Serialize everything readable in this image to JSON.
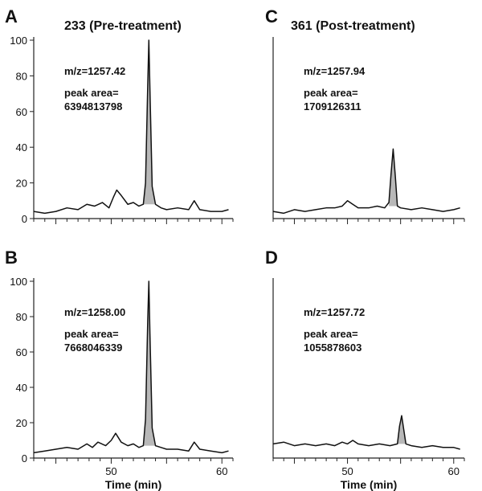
{
  "figure": {
    "group_titles": [
      "233 (Pre-treatment)",
      "361 (Post-treatment)"
    ],
    "x_axis_label": "Time (min)"
  },
  "colors": {
    "trace": "#111111",
    "peak_fill": "#b8b8b8",
    "axis": "#222222"
  },
  "chart_data": [
    {
      "type": "line",
      "panel_letter": "A",
      "title": "233 (Pre-treatment)",
      "annotation": {
        "mz_text": "m/z=1257.42",
        "peak_area_label": "peak area=",
        "peak_area_value": "6394813798"
      },
      "xlim": [
        43,
        61
      ],
      "ylim": [
        0,
        100
      ],
      "x_ticks": [],
      "y_ticks": [
        0,
        20,
        40,
        60,
        80,
        100
      ],
      "xlabel": "",
      "peak": {
        "center": 53.4,
        "fill_range": [
          52.9,
          54.0
        ]
      },
      "x": [
        43.0,
        44.0,
        45.0,
        46.0,
        47.0,
        47.8,
        48.5,
        49.2,
        49.8,
        50.2,
        50.5,
        50.9,
        51.5,
        52.0,
        52.5,
        52.9,
        53.1,
        53.3,
        53.4,
        53.5,
        53.7,
        54.0,
        54.5,
        55.0,
        56.0,
        57.0,
        57.5,
        58.0,
        59.0,
        60.0,
        60.6
      ],
      "y": [
        4,
        3,
        4,
        6,
        5,
        8,
        7,
        9,
        6,
        12,
        16,
        13,
        8,
        9,
        7,
        8,
        20,
        75,
        100,
        72,
        18,
        8,
        6,
        5,
        6,
        5,
        10,
        5,
        4,
        4,
        5
      ]
    },
    {
      "type": "line",
      "panel_letter": "B",
      "title": "",
      "annotation": {
        "mz_text": "m/z=1258.00",
        "peak_area_label": "peak area=",
        "peak_area_value": "7668046339"
      },
      "xlim": [
        43,
        61
      ],
      "ylim": [
        0,
        100
      ],
      "x_ticks": [
        50,
        60
      ],
      "y_ticks": [
        0,
        20,
        40,
        60,
        80,
        100
      ],
      "xlabel": "Time (min)",
      "peak": {
        "center": 53.4,
        "fill_range": [
          52.9,
          54.0
        ]
      },
      "x": [
        43.0,
        44.0,
        45.0,
        46.0,
        47.0,
        47.8,
        48.3,
        48.8,
        49.5,
        50.0,
        50.4,
        50.9,
        51.5,
        52.0,
        52.5,
        52.9,
        53.1,
        53.3,
        53.4,
        53.5,
        53.7,
        54.0,
        54.5,
        55.0,
        56.0,
        57.0,
        57.5,
        58.0,
        59.0,
        60.0,
        60.6
      ],
      "y": [
        3,
        4,
        5,
        6,
        5,
        8,
        6,
        9,
        7,
        10,
        14,
        9,
        7,
        8,
        6,
        7,
        22,
        78,
        100,
        70,
        17,
        7,
        6,
        5,
        5,
        4,
        9,
        5,
        4,
        3,
        4
      ]
    },
    {
      "type": "line",
      "panel_letter": "C",
      "title": "361 (Post-treatment)",
      "annotation": {
        "mz_text": "m/z=1257.94",
        "peak_area_label": "peak area=",
        "peak_area_value": "1709126311"
      },
      "xlim": [
        43,
        61
      ],
      "ylim": [
        0,
        100
      ],
      "x_ticks": [],
      "y_ticks": [],
      "xlabel": "",
      "peak": {
        "center": 54.3,
        "fill_range": [
          53.9,
          54.7
        ]
      },
      "x": [
        43.0,
        44.0,
        45.0,
        46.0,
        47.0,
        48.0,
        48.8,
        49.5,
        50.0,
        50.5,
        51.0,
        52.0,
        52.8,
        53.5,
        53.9,
        54.1,
        54.3,
        54.5,
        54.7,
        55.0,
        56.0,
        57.0,
        58.0,
        59.0,
        60.0,
        60.6
      ],
      "y": [
        4,
        3,
        5,
        4,
        5,
        6,
        6,
        7,
        10,
        8,
        6,
        6,
        7,
        6,
        9,
        25,
        39,
        24,
        7,
        6,
        5,
        6,
        5,
        4,
        5,
        6
      ]
    },
    {
      "type": "line",
      "panel_letter": "D",
      "title": "",
      "annotation": {
        "mz_text": "m/z=1257.72",
        "peak_area_label": "peak area=",
        "peak_area_value": "1055878603"
      },
      "xlim": [
        43,
        61
      ],
      "ylim": [
        0,
        100
      ],
      "x_ticks": [
        50,
        60
      ],
      "y_ticks": [],
      "xlabel": "Time (min)",
      "peak": {
        "center": 55.1,
        "fill_range": [
          54.7,
          55.5
        ]
      },
      "x": [
        43.0,
        44.0,
        45.0,
        46.0,
        47.0,
        48.0,
        48.8,
        49.5,
        50.0,
        50.5,
        51.0,
        52.0,
        53.0,
        54.0,
        54.7,
        54.9,
        55.1,
        55.3,
        55.5,
        56.0,
        57.0,
        58.0,
        59.0,
        60.0,
        60.6
      ],
      "y": [
        8,
        9,
        7,
        8,
        7,
        8,
        7,
        9,
        8,
        10,
        8,
        7,
        8,
        7,
        8,
        18,
        24,
        16,
        8,
        7,
        6,
        7,
        6,
        6,
        5
      ]
    }
  ]
}
